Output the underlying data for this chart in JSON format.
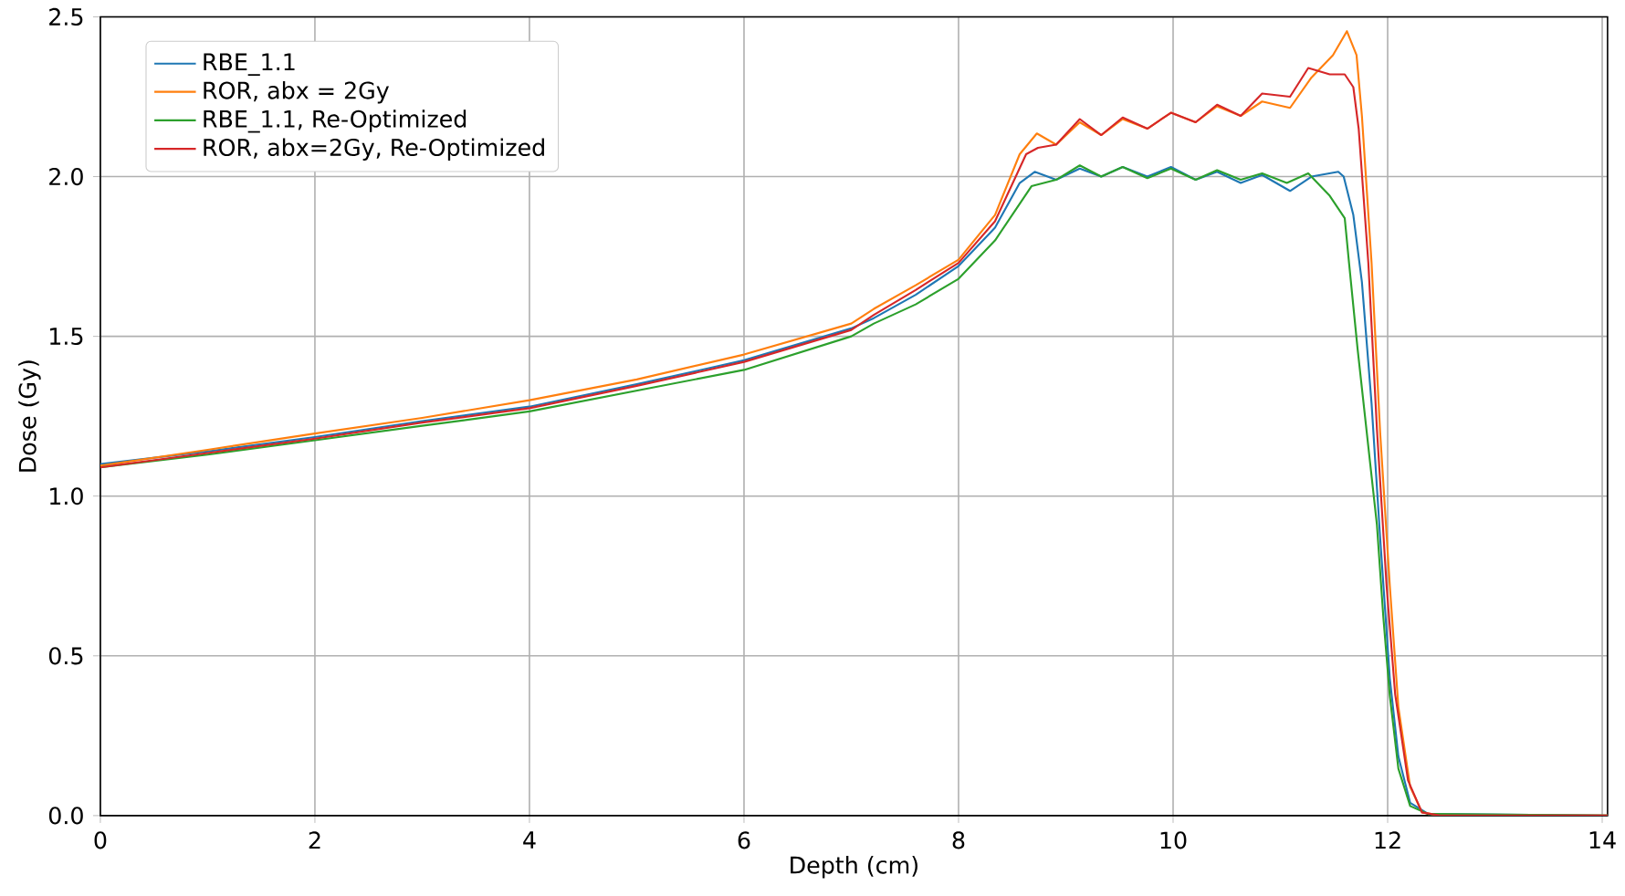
{
  "chart_data": {
    "type": "line",
    "xlabel": "Depth (cm)",
    "ylabel": "Dose (Gy)",
    "xlim": [
      0,
      14.05
    ],
    "ylim": [
      0,
      2.5
    ],
    "xticks": [
      0,
      2,
      4,
      6,
      8,
      10,
      12,
      14
    ],
    "yticks": [
      {
        "value": 0,
        "label": "0.0"
      },
      {
        "value": 0.5,
        "label": "0.5"
      },
      {
        "value": 1,
        "label": "1.0"
      },
      {
        "value": 1.5,
        "label": "1.5"
      },
      {
        "value": 2,
        "label": "2.0"
      },
      {
        "value": 2.5,
        "label": "2.5"
      }
    ],
    "grid": true,
    "legend": "top left",
    "line_style": "solid",
    "series": [
      {
        "name": "RBE_1.1",
        "color": "#1f77b4",
        "x": [
          0,
          1,
          2,
          3,
          4,
          5,
          6,
          7,
          7.21,
          7.6,
          8.0,
          8.34,
          8.57,
          8.71,
          8.91,
          9.13,
          9.33,
          9.53,
          9.76,
          9.98,
          10.21,
          10.41,
          10.63,
          10.83,
          11.09,
          11.29,
          11.54,
          11.59,
          11.68,
          11.76,
          11.85,
          11.93,
          12.02,
          12.1,
          12.21,
          12.38,
          14.05
        ],
        "values": [
          1.1,
          1.14,
          1.185,
          1.235,
          1.28,
          1.35,
          1.425,
          1.525,
          1.557,
          1.63,
          1.72,
          1.84,
          1.98,
          2.015,
          1.99,
          2.025,
          2.0,
          2.03,
          2.0,
          2.03,
          1.99,
          2.015,
          1.98,
          2.005,
          1.955,
          2.0,
          2.015,
          2.0,
          1.88,
          1.67,
          1.29,
          0.87,
          0.43,
          0.185,
          0.04,
          0.005,
          0
        ]
      },
      {
        "name": "ROR, abx = 2Gy",
        "color": "#ff7f0e",
        "x": [
          0,
          1,
          2,
          3,
          4,
          5,
          6,
          7,
          7.21,
          7.6,
          8.0,
          8.34,
          8.57,
          8.73,
          8.91,
          9.13,
          9.33,
          9.53,
          9.76,
          9.98,
          10.21,
          10.41,
          10.63,
          10.83,
          11.09,
          11.29,
          11.49,
          11.62,
          11.71,
          11.76,
          11.85,
          11.93,
          12.02,
          12.1,
          12.21,
          12.32,
          12.49,
          14.05
        ],
        "values": [
          1.095,
          1.145,
          1.196,
          1.245,
          1.3,
          1.365,
          1.443,
          1.54,
          1.586,
          1.66,
          1.74,
          1.88,
          2.07,
          2.135,
          2.1,
          2.17,
          2.13,
          2.18,
          2.15,
          2.2,
          2.17,
          2.22,
          2.19,
          2.235,
          2.215,
          2.31,
          2.38,
          2.455,
          2.38,
          2.19,
          1.73,
          1.2,
          0.72,
          0.34,
          0.09,
          0.01,
          0,
          0
        ]
      },
      {
        "name": "RBE_1.1, Re-Optimized",
        "color": "#2ca02c",
        "x": [
          0,
          1,
          2,
          3,
          4,
          5,
          6,
          7,
          7.21,
          7.6,
          8.0,
          8.34,
          8.68,
          8.91,
          9.13,
          9.33,
          9.53,
          9.76,
          9.98,
          10.21,
          10.41,
          10.63,
          10.83,
          11.06,
          11.26,
          11.46,
          11.6,
          11.64,
          11.72,
          11.9,
          11.96,
          12.02,
          12.1,
          12.21,
          12.38,
          14.05
        ],
        "values": [
          1.09,
          1.13,
          1.175,
          1.22,
          1.265,
          1.33,
          1.395,
          1.5,
          1.54,
          1.6,
          1.68,
          1.8,
          1.97,
          1.99,
          2.035,
          2.0,
          2.03,
          1.995,
          2.025,
          1.99,
          2.02,
          1.99,
          2.01,
          1.98,
          2.01,
          1.94,
          1.87,
          1.73,
          1.46,
          0.91,
          0.62,
          0.375,
          0.147,
          0.03,
          0.005,
          0
        ]
      },
      {
        "name": "ROR, abx=2Gy, Re-Optimized",
        "color": "#d62728",
        "x": [
          0,
          1,
          2,
          3,
          4,
          5,
          6,
          7,
          7.21,
          7.6,
          8.0,
          8.34,
          8.63,
          8.74,
          8.91,
          9.13,
          9.33,
          9.53,
          9.76,
          9.98,
          10.21,
          10.41,
          10.63,
          10.83,
          11.09,
          11.26,
          11.46,
          11.6,
          11.68,
          11.73,
          11.82,
          11.9,
          11.99,
          12.07,
          12.19,
          12.32,
          12.49,
          14.05
        ],
        "values": [
          1.09,
          1.135,
          1.18,
          1.23,
          1.275,
          1.345,
          1.42,
          1.52,
          1.567,
          1.645,
          1.73,
          1.86,
          2.07,
          2.09,
          2.1,
          2.18,
          2.13,
          2.185,
          2.15,
          2.2,
          2.17,
          2.225,
          2.19,
          2.26,
          2.25,
          2.34,
          2.32,
          2.32,
          2.28,
          2.15,
          1.73,
          1.21,
          0.72,
          0.38,
          0.11,
          0.01,
          0,
          0
        ]
      }
    ]
  }
}
